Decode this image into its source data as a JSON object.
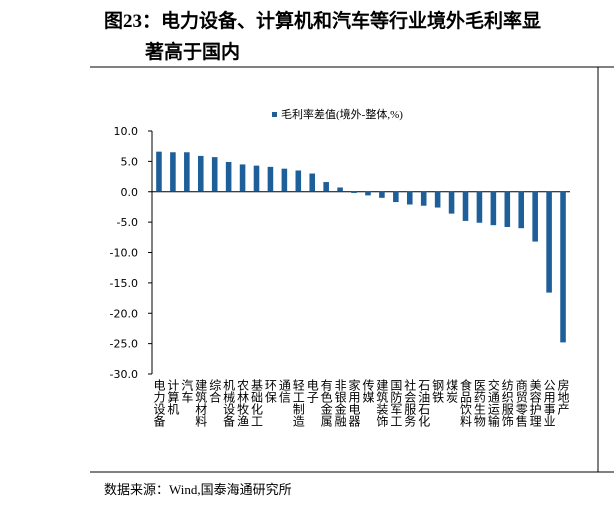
{
  "chart_data": {
    "type": "bar",
    "title": [
      "图23：电力设备、计算机和汽车等行业境外毛利率显",
      "著高于国内"
    ],
    "series": [
      {
        "name": "毛利率差值(境外-整体,%)",
        "color": "#1f5f99",
        "values": [
          6.6,
          6.5,
          6.5,
          5.9,
          5.7,
          4.9,
          4.5,
          4.3,
          4.1,
          3.8,
          3.5,
          3.0,
          1.6,
          0.7,
          -0.2,
          -0.6,
          -1.0,
          -1.7,
          -2.1,
          -2.3,
          -2.6,
          -3.6,
          -4.8,
          -5.1,
          -5.5,
          -5.8,
          -6.0,
          -8.2,
          -16.6,
          -24.8
        ]
      }
    ],
    "categories": [
      "电力设备",
      "计算机",
      "汽车",
      "建筑材料",
      "综合",
      "机械设备",
      "农林牧渔",
      "基础化工",
      "环保",
      "通信",
      "轻工制造",
      "电子",
      "有色金属",
      "非银金融",
      "家用电器",
      "传媒",
      "建筑装饰",
      "国防军工",
      "社会服务",
      "石油石化",
      "钢铁",
      "煤炭",
      "食品饮料",
      "医药生物",
      "交通运输",
      "纺织服饰",
      "商贸零售",
      "美容护理",
      "公用事业",
      "房地产"
    ],
    "ylim": [
      -30,
      10
    ],
    "yticks": [
      {
        "value": 10,
        "label": "10.0"
      },
      {
        "value": 5,
        "label": "5.0"
      },
      {
        "value": 0,
        "label": "0.0"
      },
      {
        "value": -5,
        "label": "-5.0"
      },
      {
        "value": -10,
        "label": "-10.0"
      },
      {
        "value": -15,
        "label": "-15.0"
      },
      {
        "value": -20,
        "label": "-20.0"
      },
      {
        "value": -25,
        "label": "-25.0"
      },
      {
        "value": -30,
        "label": "-30.0"
      }
    ],
    "source": "数据来源：Wind,国泰海通研究所"
  }
}
